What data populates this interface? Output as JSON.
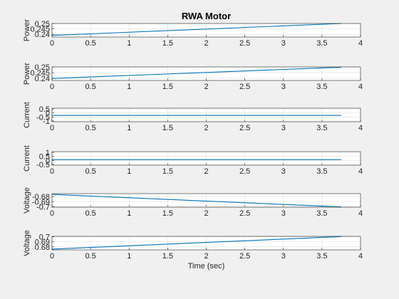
{
  "chart_data": [
    {
      "type": "line",
      "title": "RWA Motor",
      "ylabel": "Power",
      "xlabel": "",
      "xlim": [
        0,
        4
      ],
      "ylim": [
        0.2375,
        0.25
      ],
      "grid": true,
      "x_ticks": [
        "0",
        "0.5",
        "1",
        "1.5",
        "2",
        "2.5",
        "3",
        "3.5",
        "4"
      ],
      "y_ticks": [
        {
          "v": 0.24,
          "label": "0.24"
        },
        {
          "v": 0.245,
          "label": "0.245"
        },
        {
          "v": 0.25,
          "label": "0.25"
        }
      ],
      "series": [
        {
          "x": [
            0,
            3.75
          ],
          "y": [
            0.239,
            0.25
          ]
        }
      ]
    },
    {
      "type": "line",
      "title": "",
      "ylabel": "Power",
      "xlabel": "",
      "xlim": [
        0,
        4
      ],
      "ylim": [
        0.238,
        0.25
      ],
      "grid": true,
      "x_ticks": [
        "0",
        "0.5",
        "1",
        "1.5",
        "2",
        "2.5",
        "3",
        "3.5",
        "4"
      ],
      "y_ticks": [
        {
          "v": 0.24,
          "label": "0.24"
        },
        {
          "v": 0.245,
          "label": "0.245"
        },
        {
          "v": 0.25,
          "label": "0.25"
        }
      ],
      "series": [
        {
          "x": [
            0,
            3.75
          ],
          "y": [
            0.2398,
            0.2497
          ]
        }
      ]
    },
    {
      "type": "line",
      "title": "",
      "ylabel": "Current",
      "xlabel": "",
      "xlim": [
        0,
        4
      ],
      "ylim": [
        -1.1,
        0.6
      ],
      "grid": true,
      "x_ticks": [
        "0",
        "0.5",
        "1",
        "1.5",
        "2",
        "2.5",
        "3",
        "3.5",
        "4"
      ],
      "y_ticks": [
        {
          "v": 0.5,
          "label": "0.5"
        },
        {
          "v": 0,
          "label": "0"
        },
        {
          "v": -0.5,
          "label": "-0.5"
        },
        {
          "v": -1,
          "label": "-1"
        }
      ],
      "series": [
        {
          "x": [
            0,
            3.75
          ],
          "y": [
            -0.3,
            -0.3
          ]
        }
      ]
    },
    {
      "type": "line",
      "title": "",
      "ylabel": "Current",
      "xlabel": "",
      "xlim": [
        0,
        4
      ],
      "ylim": [
        -0.6,
        1.1
      ],
      "grid": true,
      "x_ticks": [
        "0",
        "0.5",
        "1",
        "1.5",
        "2",
        "2.5",
        "3",
        "3.5",
        "4"
      ],
      "y_ticks": [
        {
          "v": 1,
          "label": "1"
        },
        {
          "v": 0.5,
          "label": "0.5"
        },
        {
          "v": 0,
          "label": "0"
        },
        {
          "v": -0.5,
          "label": "-0.5"
        }
      ],
      "series": [
        {
          "x": [
            0,
            3.75
          ],
          "y": [
            0.1,
            0.1
          ]
        }
      ]
    },
    {
      "type": "line",
      "title": "",
      "ylabel": "Voltage",
      "xlabel": "",
      "xlim": [
        0,
        4
      ],
      "ylim": [
        -0.701,
        -0.674
      ],
      "grid": true,
      "x_ticks": [
        "0",
        "0.5",
        "1",
        "1.5",
        "2",
        "2.5",
        "3",
        "3.5",
        "4"
      ],
      "y_ticks": [
        {
          "v": -0.68,
          "label": "-0.68"
        },
        {
          "v": -0.69,
          "label": "-0.69"
        },
        {
          "v": -0.7,
          "label": "-0.7"
        }
      ],
      "series": [
        {
          "x": [
            0,
            3.75
          ],
          "y": [
            -0.6755,
            -0.7005
          ]
        }
      ]
    },
    {
      "type": "line",
      "title": "",
      "ylabel": "Voltage",
      "xlabel": "Time (sec)",
      "xlim": [
        0,
        4
      ],
      "ylim": [
        0.674,
        0.701
      ],
      "grid": true,
      "x_ticks": [
        "0",
        "0.5",
        "1",
        "1.5",
        "2",
        "2.5",
        "3",
        "3.5",
        "4"
      ],
      "y_ticks": [
        {
          "v": 0.7,
          "label": "0.7"
        },
        {
          "v": 0.69,
          "label": "0.69"
        },
        {
          "v": 0.68,
          "label": "0.68"
        }
      ],
      "series": [
        {
          "x": [
            0,
            3.75
          ],
          "y": [
            0.6755,
            0.7005
          ]
        }
      ]
    }
  ],
  "colors": {
    "line": "#0072bd",
    "axis": "#262626",
    "grid": "#dfdfdf",
    "plot_bg": "#ffffff",
    "figure_bg": "#f0f0f0"
  }
}
